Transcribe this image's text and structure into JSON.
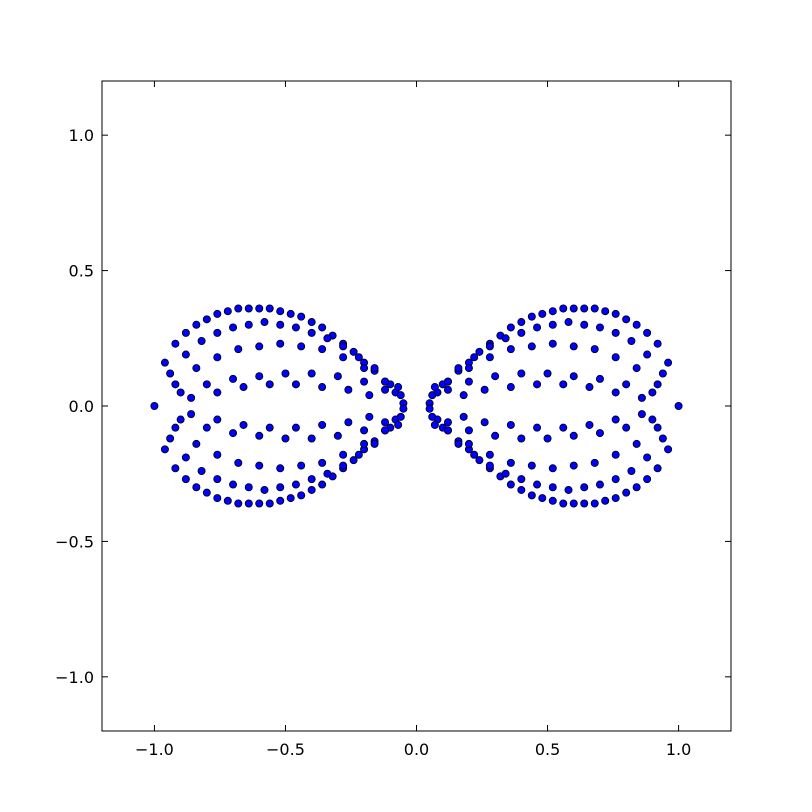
{
  "chart_data": {
    "type": "scatter",
    "title": "",
    "xlabel": "",
    "ylabel": "",
    "xlim": [
      -1.2,
      1.2
    ],
    "ylim": [
      -1.2,
      1.2
    ],
    "grid": false,
    "x_ticks": [
      -1.0,
      -0.5,
      0.0,
      0.5,
      1.0
    ],
    "y_ticks": [
      -1.0,
      -0.5,
      0.0,
      0.5,
      1.0
    ],
    "x_tick_labels": [
      "−1.0",
      "−0.5",
      "0.0",
      "0.5",
      "1.0"
    ],
    "y_tick_labels": [
      "−1.0",
      "−0.5",
      "0.0",
      "0.5",
      "1.0"
    ],
    "marker_color": "#0000ff",
    "marker_edge_color": "#000000",
    "series": [
      {
        "x": [
          -1.0,
          1.0,
          -0.96,
          -0.92,
          -0.88,
          -0.84,
          -0.8,
          -0.76,
          -0.72,
          -0.68,
          -0.64,
          -0.6,
          -0.56,
          -0.52,
          -0.48,
          -0.44,
          -0.4,
          -0.36,
          -0.32,
          -0.28,
          -0.24,
          -0.2,
          -0.16,
          -0.12,
          -0.08,
          -0.96,
          -0.92,
          -0.88,
          -0.84,
          -0.8,
          -0.76,
          -0.72,
          -0.68,
          -0.64,
          -0.6,
          -0.56,
          -0.52,
          -0.48,
          -0.44,
          -0.4,
          -0.36,
          -0.32,
          -0.28,
          -0.24,
          -0.2,
          -0.16,
          -0.12,
          -0.08,
          -0.94,
          -0.88,
          -0.82,
          -0.76,
          -0.7,
          -0.64,
          -0.58,
          -0.52,
          -0.46,
          -0.4,
          -0.34,
          -0.28,
          -0.22,
          -0.16,
          -0.1,
          -0.94,
          -0.88,
          -0.82,
          -0.76,
          -0.7,
          -0.64,
          -0.58,
          -0.52,
          -0.46,
          -0.4,
          -0.34,
          -0.28,
          -0.22,
          -0.16,
          -0.1,
          -0.92,
          -0.84,
          -0.76,
          -0.68,
          -0.6,
          -0.52,
          -0.44,
          -0.36,
          -0.28,
          -0.2,
          -0.12,
          -0.92,
          -0.84,
          -0.76,
          -0.68,
          -0.6,
          -0.52,
          -0.44,
          -0.36,
          -0.28,
          -0.2,
          -0.12,
          -0.9,
          -0.8,
          -0.7,
          -0.6,
          -0.5,
          -0.4,
          -0.3,
          -0.2,
          -0.12,
          -0.9,
          -0.8,
          -0.7,
          -0.6,
          -0.5,
          -0.4,
          -0.3,
          -0.2,
          -0.12,
          -0.86,
          -0.76,
          -0.66,
          -0.56,
          -0.46,
          -0.36,
          -0.26,
          -0.18,
          -0.86,
          -0.76,
          -0.66,
          -0.56,
          -0.46,
          -0.36,
          -0.26,
          -0.18,
          -0.07,
          -0.06,
          -0.05,
          -0.05,
          -0.06,
          -0.07,
          0.96,
          0.92,
          0.88,
          0.84,
          0.8,
          0.76,
          0.72,
          0.68,
          0.64,
          0.6,
          0.56,
          0.52,
          0.48,
          0.44,
          0.4,
          0.36,
          0.32,
          0.28,
          0.24,
          0.2,
          0.16,
          0.12,
          0.08,
          0.96,
          0.92,
          0.88,
          0.84,
          0.8,
          0.76,
          0.72,
          0.68,
          0.64,
          0.6,
          0.56,
          0.52,
          0.48,
          0.44,
          0.4,
          0.36,
          0.32,
          0.28,
          0.24,
          0.2,
          0.16,
          0.12,
          0.08,
          0.94,
          0.88,
          0.82,
          0.76,
          0.7,
          0.64,
          0.58,
          0.52,
          0.46,
          0.4,
          0.34,
          0.28,
          0.22,
          0.16,
          0.1,
          0.94,
          0.88,
          0.82,
          0.76,
          0.7,
          0.64,
          0.58,
          0.52,
          0.46,
          0.4,
          0.34,
          0.28,
          0.22,
          0.16,
          0.1,
          0.92,
          0.84,
          0.76,
          0.68,
          0.6,
          0.52,
          0.44,
          0.36,
          0.28,
          0.2,
          0.12,
          0.92,
          0.84,
          0.76,
          0.68,
          0.6,
          0.52,
          0.44,
          0.36,
          0.28,
          0.2,
          0.12,
          0.9,
          0.8,
          0.7,
          0.6,
          0.5,
          0.4,
          0.3,
          0.2,
          0.12,
          0.9,
          0.8,
          0.7,
          0.6,
          0.5,
          0.4,
          0.3,
          0.2,
          0.12,
          0.86,
          0.76,
          0.66,
          0.56,
          0.46,
          0.36,
          0.26,
          0.18,
          0.86,
          0.76,
          0.66,
          0.56,
          0.46,
          0.36,
          0.26,
          0.18,
          0.07,
          0.06,
          0.05,
          0.05,
          0.06,
          0.07
        ],
        "y": [
          0.0,
          0.0,
          0.16,
          0.23,
          0.27,
          0.3,
          0.32,
          0.34,
          0.35,
          0.36,
          0.36,
          0.36,
          0.36,
          0.35,
          0.34,
          0.33,
          0.31,
          0.29,
          0.26,
          0.23,
          0.2,
          0.16,
          0.13,
          0.09,
          0.05,
          -0.16,
          -0.23,
          -0.27,
          -0.3,
          -0.32,
          -0.34,
          -0.35,
          -0.36,
          -0.36,
          -0.36,
          -0.36,
          -0.35,
          -0.34,
          -0.33,
          -0.31,
          -0.29,
          -0.26,
          -0.23,
          -0.2,
          -0.16,
          -0.13,
          -0.09,
          -0.05,
          0.12,
          0.19,
          0.24,
          0.27,
          0.29,
          0.3,
          0.31,
          0.3,
          0.29,
          0.27,
          0.25,
          0.22,
          0.18,
          0.14,
          0.08,
          -0.12,
          -0.19,
          -0.24,
          -0.27,
          -0.29,
          -0.3,
          -0.31,
          -0.3,
          -0.29,
          -0.27,
          -0.25,
          -0.22,
          -0.18,
          -0.14,
          -0.08,
          0.08,
          0.14,
          0.18,
          0.21,
          0.22,
          0.23,
          0.22,
          0.21,
          0.18,
          0.14,
          0.09,
          -0.08,
          -0.14,
          -0.18,
          -0.21,
          -0.22,
          -0.23,
          -0.22,
          -0.21,
          -0.18,
          -0.14,
          -0.09,
          0.05,
          0.08,
          0.1,
          0.11,
          0.12,
          0.12,
          0.11,
          0.09,
          0.06,
          -0.05,
          -0.08,
          -0.1,
          -0.11,
          -0.12,
          -0.12,
          -0.11,
          -0.09,
          -0.06,
          0.03,
          0.05,
          0.07,
          0.08,
          0.08,
          0.07,
          0.06,
          0.04,
          -0.03,
          -0.05,
          -0.07,
          -0.08,
          -0.08,
          -0.07,
          -0.06,
          -0.04,
          0.07,
          0.04,
          0.01,
          -0.01,
          -0.04,
          -0.07,
          0.16,
          0.23,
          0.27,
          0.3,
          0.32,
          0.34,
          0.35,
          0.36,
          0.36,
          0.36,
          0.36,
          0.35,
          0.34,
          0.33,
          0.31,
          0.29,
          0.26,
          0.23,
          0.2,
          0.16,
          0.13,
          0.09,
          0.05,
          -0.16,
          -0.23,
          -0.27,
          -0.3,
          -0.32,
          -0.34,
          -0.35,
          -0.36,
          -0.36,
          -0.36,
          -0.36,
          -0.35,
          -0.34,
          -0.33,
          -0.31,
          -0.29,
          -0.26,
          -0.23,
          -0.2,
          -0.16,
          -0.13,
          -0.09,
          -0.05,
          0.12,
          0.19,
          0.24,
          0.27,
          0.29,
          0.3,
          0.31,
          0.3,
          0.29,
          0.27,
          0.25,
          0.22,
          0.18,
          0.14,
          0.08,
          -0.12,
          -0.19,
          -0.24,
          -0.27,
          -0.29,
          -0.3,
          -0.31,
          -0.3,
          -0.29,
          -0.27,
          -0.25,
          -0.22,
          -0.18,
          -0.14,
          -0.08,
          0.08,
          0.14,
          0.18,
          0.21,
          0.22,
          0.23,
          0.22,
          0.21,
          0.18,
          0.14,
          0.09,
          -0.08,
          -0.14,
          -0.18,
          -0.21,
          -0.22,
          -0.23,
          -0.22,
          -0.21,
          -0.18,
          -0.14,
          -0.09,
          0.05,
          0.08,
          0.1,
          0.11,
          0.12,
          0.12,
          0.11,
          0.09,
          0.06,
          -0.05,
          -0.08,
          -0.1,
          -0.11,
          -0.12,
          -0.12,
          -0.11,
          -0.09,
          -0.06,
          0.03,
          0.05,
          0.07,
          0.08,
          0.08,
          0.07,
          0.06,
          0.04,
          -0.03,
          -0.05,
          -0.07,
          -0.08,
          -0.08,
          -0.07,
          -0.06,
          -0.04,
          0.07,
          0.04,
          0.01,
          -0.01,
          -0.04,
          -0.07
        ]
      }
    ]
  }
}
